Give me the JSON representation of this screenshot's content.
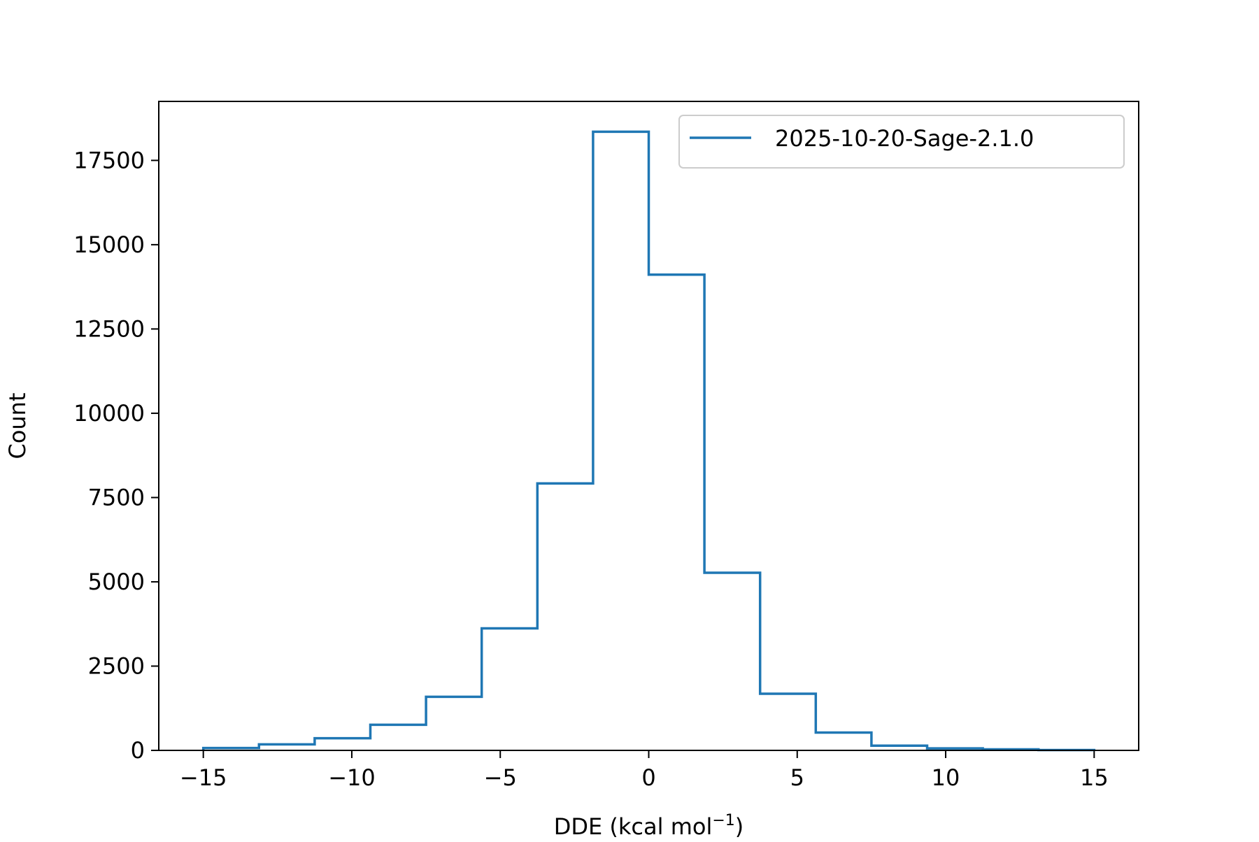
{
  "chart_data": {
    "type": "histogram",
    "title": "",
    "xlabel": "DDE (kcal mol",
    "xlabel_sup": "−1",
    "xlabel_close": ")",
    "ylabel": "Count",
    "xlim": [
      -16.5,
      16.5
    ],
    "ylim": [
      0,
      19250
    ],
    "xticks": [
      -15,
      -10,
      -5,
      0,
      5,
      10,
      15
    ],
    "xtick_labels": [
      "−15",
      "−10",
      "−5",
      "0",
      "5",
      "10",
      "15"
    ],
    "yticks": [
      0,
      2500,
      5000,
      7500,
      10000,
      12500,
      15000,
      17500
    ],
    "ytick_labels": [
      "0",
      "2500",
      "5000",
      "7500",
      "10000",
      "12500",
      "15000",
      "17500"
    ],
    "bin_edges": [
      -15,
      -13.125,
      -11.25,
      -9.375,
      -7.5,
      -5.625,
      -3.75,
      -1.875,
      0,
      1.875,
      3.75,
      5.625,
      7.5,
      9.375,
      11.25,
      13.125,
      15
    ],
    "series": [
      {
        "name": "2025-10-20-Sage-2.1.0",
        "color": "#1f77b4",
        "counts": [
          70,
          180,
          360,
          760,
          1590,
          3620,
          7920,
          18350,
          14110,
          5270,
          1680,
          530,
          140,
          60,
          30,
          10
        ]
      }
    ],
    "legend_position": "upper right",
    "grid": false
  }
}
